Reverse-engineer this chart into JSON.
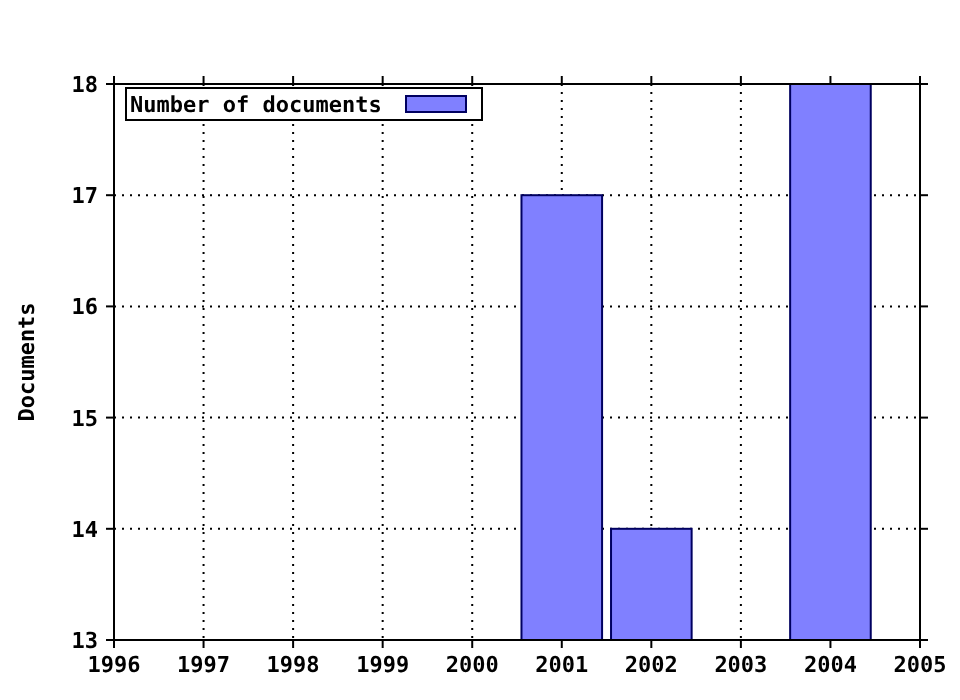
{
  "chart_data": {
    "type": "bar",
    "ylabel": "Documents",
    "x": [
      2001,
      2002,
      2004
    ],
    "series": [
      {
        "name": "Number of documents",
        "color": "#8080ff",
        "values": [
          17,
          14,
          18
        ]
      }
    ],
    "xlim": [
      1996,
      2005
    ],
    "xticks": [
      {
        "value": 1996,
        "label": "1996"
      },
      {
        "value": 1997,
        "label": "1997"
      },
      {
        "value": 1998,
        "label": "1998"
      },
      {
        "value": 1999,
        "label": "1999"
      },
      {
        "value": 2000,
        "label": "2000"
      },
      {
        "value": 2001,
        "label": "2001"
      },
      {
        "value": 2002,
        "label": "2002"
      },
      {
        "value": 2003,
        "label": "2003"
      },
      {
        "value": 2004,
        "label": "2004"
      },
      {
        "value": 2005,
        "label": "2005"
      }
    ],
    "ylim": [
      13,
      18
    ],
    "yticks": [
      13,
      14,
      15,
      16,
      17,
      18
    ],
    "grid": true,
    "legend": "top left"
  }
}
